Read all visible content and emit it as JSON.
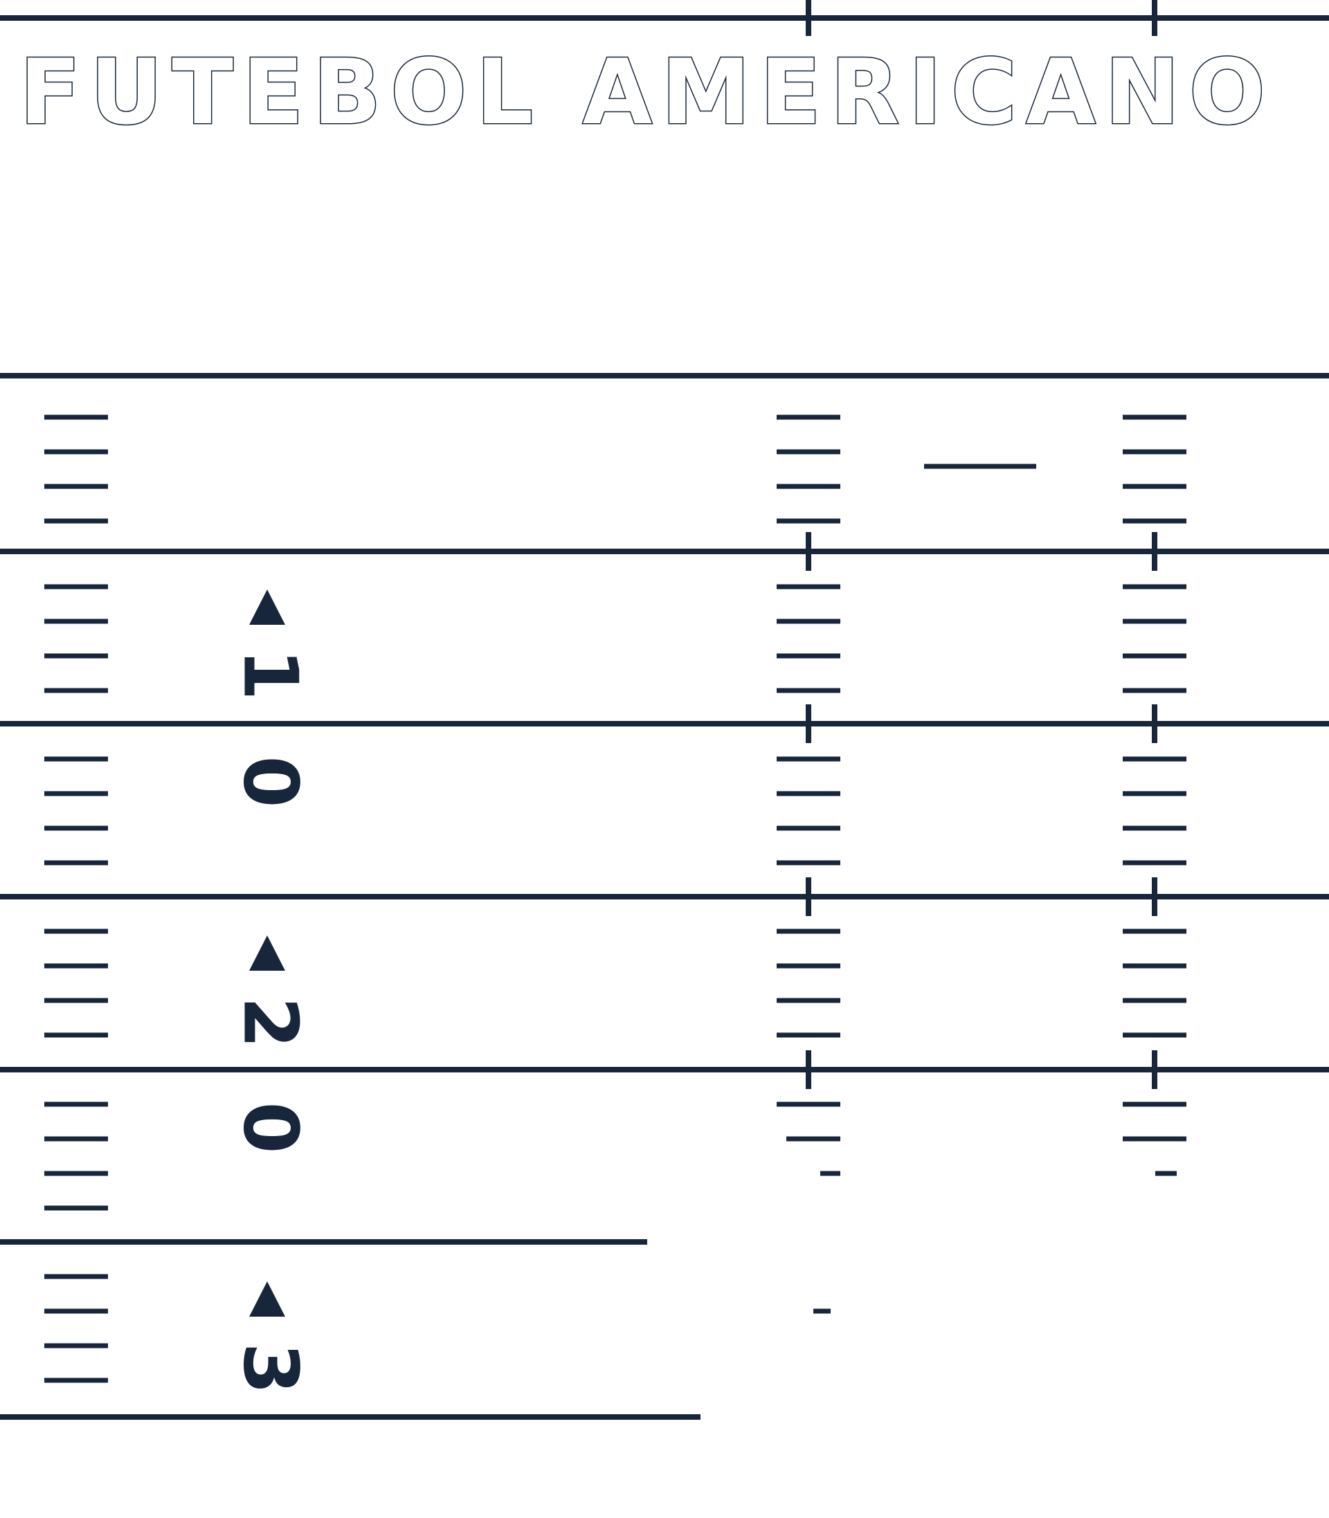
{
  "title": "FUTEBOL AMERICANO",
  "colors": {
    "line": "#17263a",
    "background": "#ffffff"
  },
  "yard_numbers": [
    {
      "tens": "1",
      "ones": "0",
      "direction": "arrow-up-icon"
    },
    {
      "tens": "2",
      "ones": "0",
      "direction": "arrow-up-icon"
    },
    {
      "tens": "3",
      "ones": "",
      "direction": "arrow-up-icon"
    }
  ]
}
